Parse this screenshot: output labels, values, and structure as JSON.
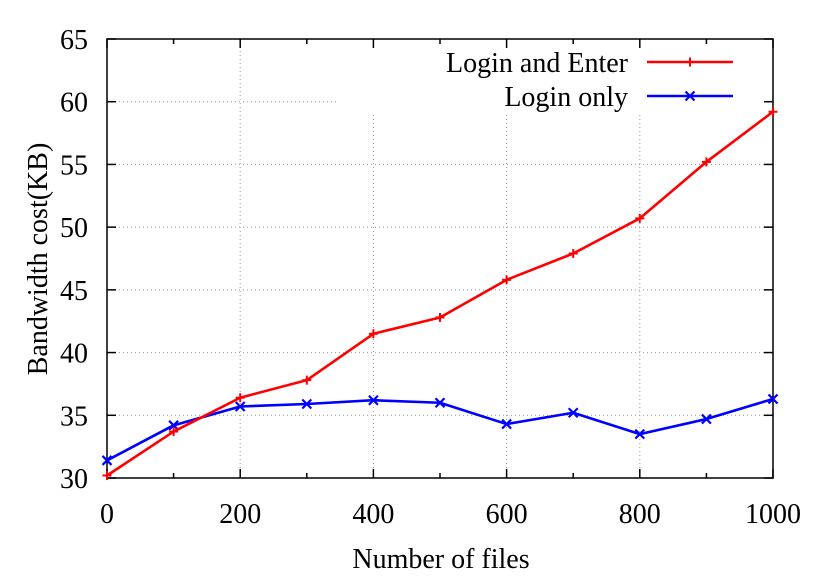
{
  "chart_data": {
    "type": "line",
    "title": "",
    "xlabel": "Number of files",
    "ylabel": "Bandwidth cost(KB)",
    "xlim": [
      0,
      1000
    ],
    "ylim": [
      30,
      65
    ],
    "xticks": [
      0,
      200,
      400,
      600,
      800,
      1000
    ],
    "yticks": [
      30,
      35,
      40,
      45,
      50,
      55,
      60,
      65
    ],
    "grid": true,
    "legend_position": "top-right",
    "x": [
      0,
      100,
      200,
      300,
      400,
      500,
      600,
      700,
      800,
      900,
      1000
    ],
    "series": [
      {
        "name": "Login and Enter",
        "color": "#ff0000",
        "marker": "plus",
        "values": [
          30.2,
          33.7,
          36.4,
          37.8,
          41.5,
          42.8,
          45.8,
          47.9,
          50.7,
          55.2,
          59.2
        ]
      },
      {
        "name": "Login only",
        "color": "#0000ff",
        "marker": "cross",
        "values": [
          31.4,
          34.2,
          35.7,
          35.9,
          36.2,
          36.0,
          34.3,
          35.2,
          33.5,
          34.7,
          36.3
        ]
      }
    ]
  }
}
